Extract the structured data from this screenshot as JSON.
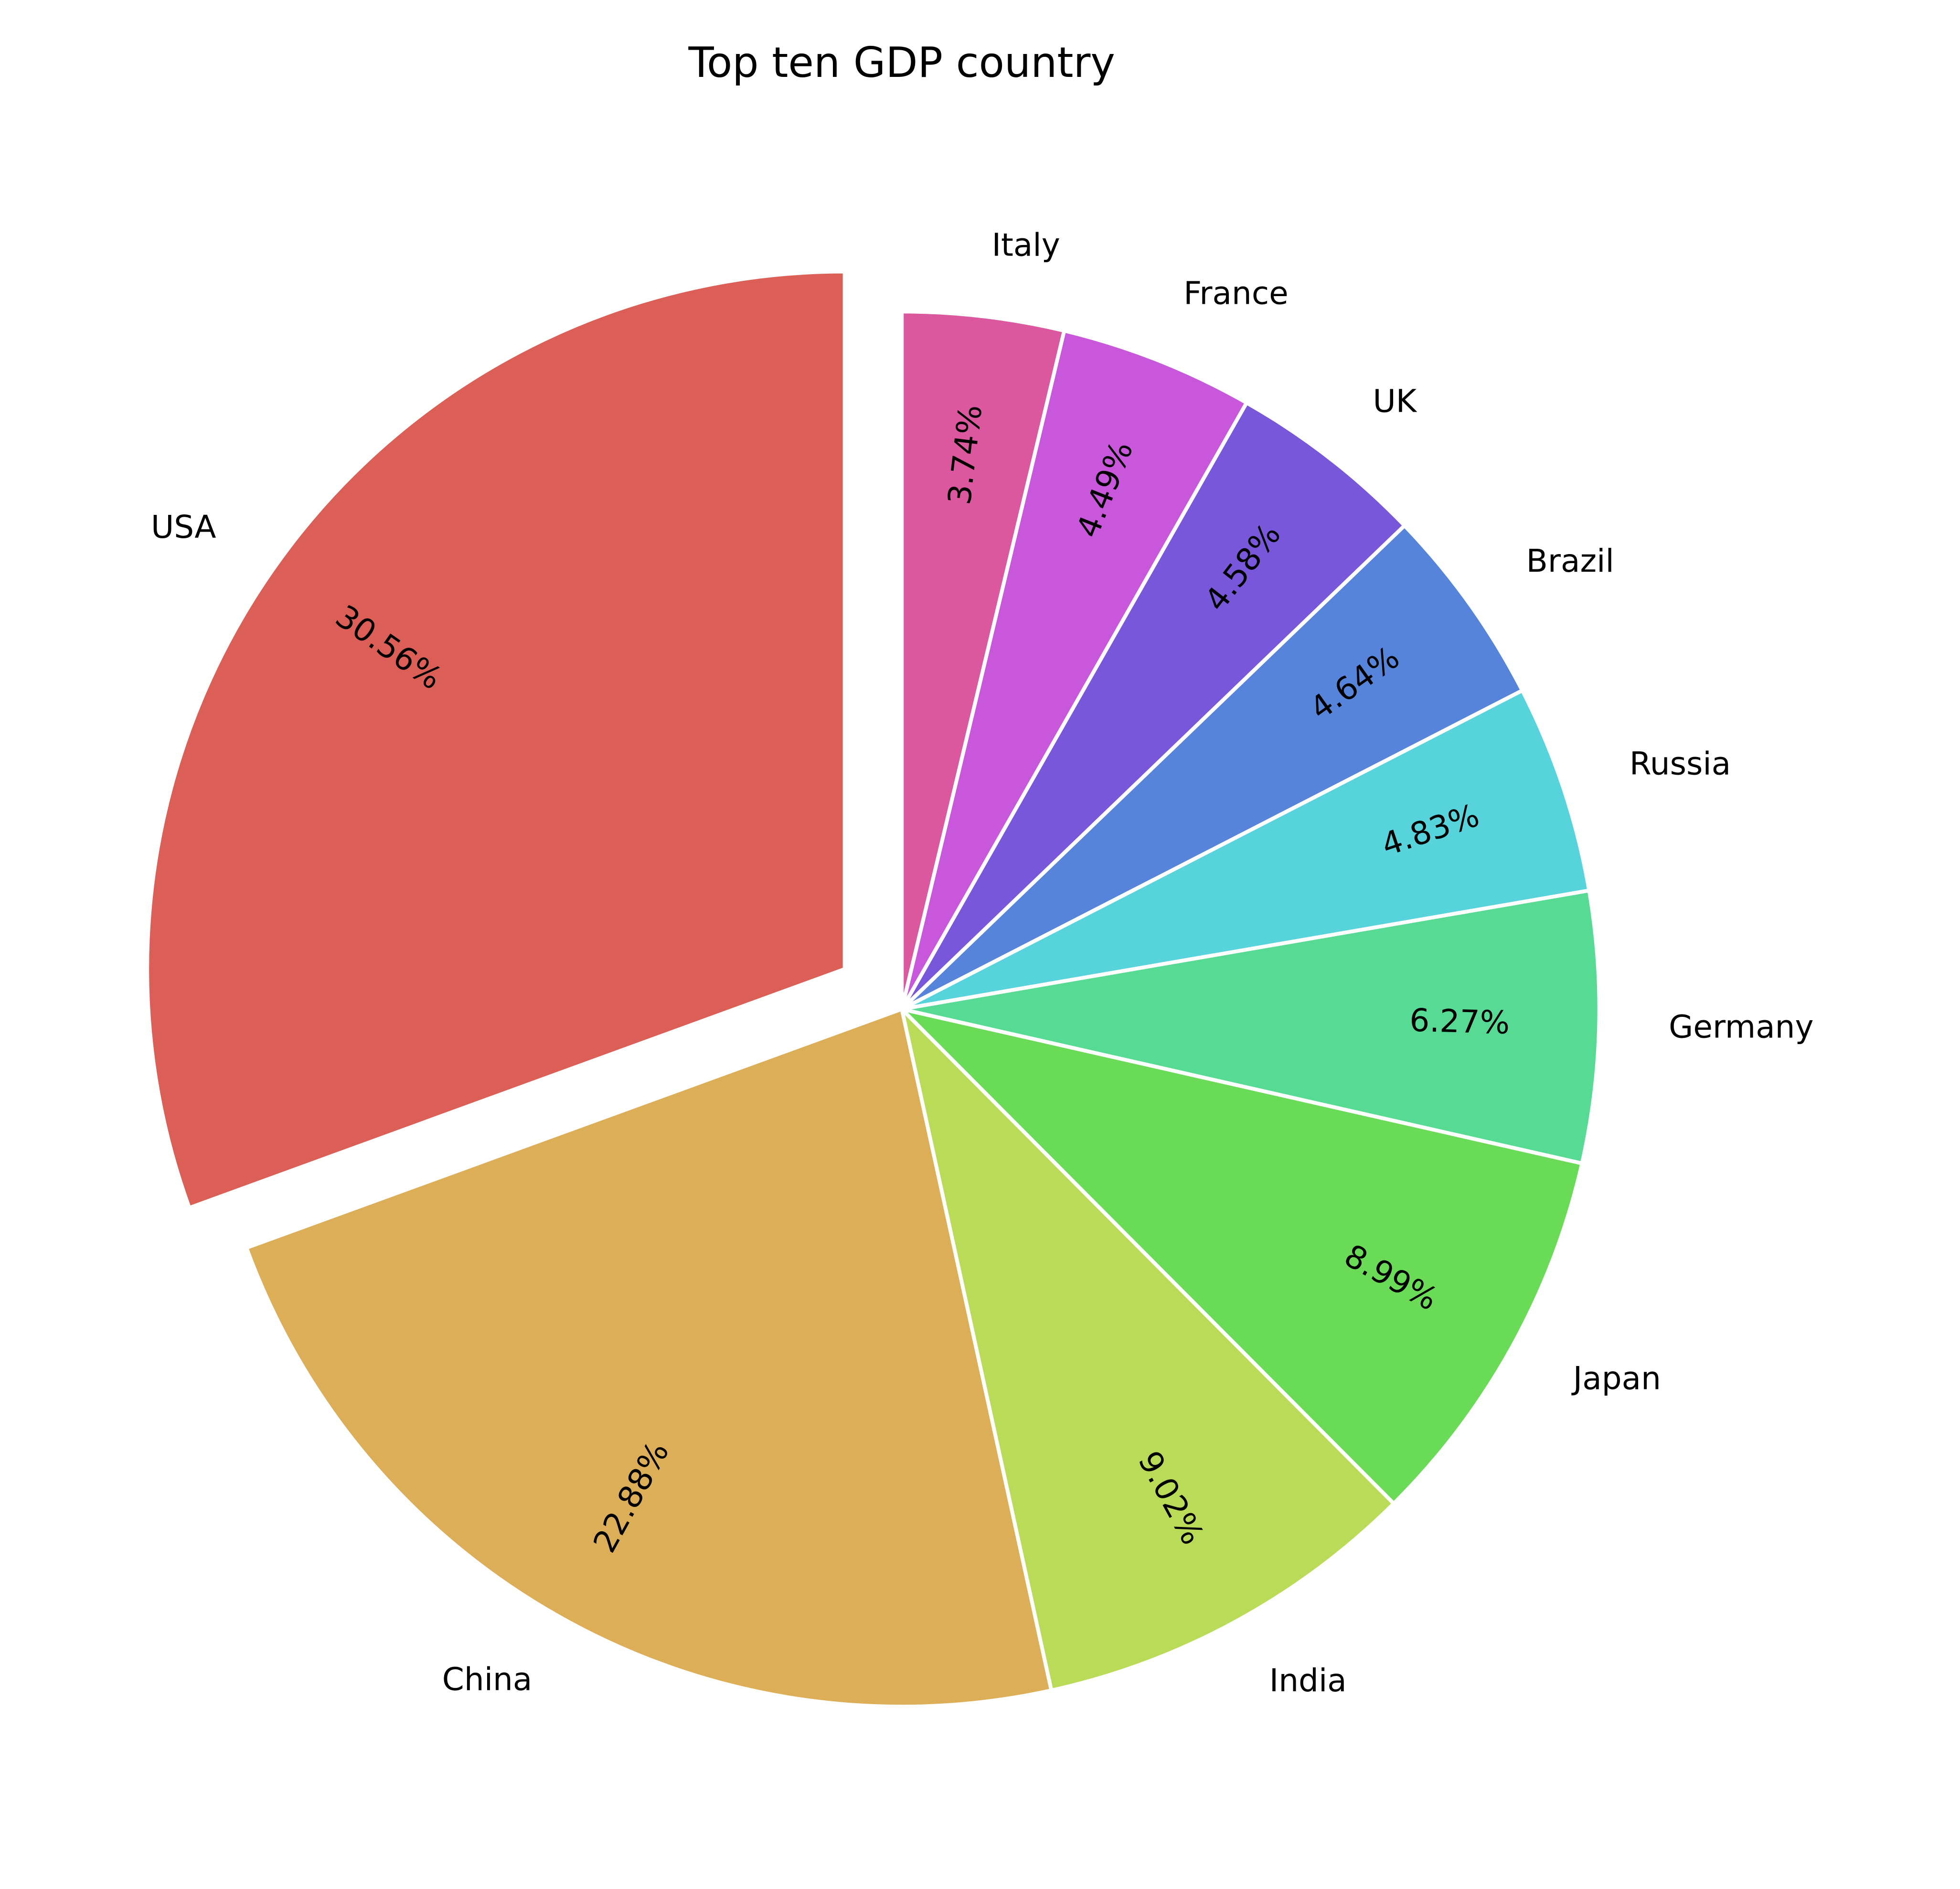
{
  "chart_data": {
    "type": "pie",
    "title": "Top ten GDP country",
    "categories": [
      "USA",
      "China",
      "India",
      "Japan",
      "Germany",
      "Russia",
      "Brazil",
      "UK",
      "France",
      "Italy"
    ],
    "values": [
      30.56,
      22.88,
      9.02,
      8.99,
      6.27,
      4.83,
      4.64,
      4.58,
      4.49,
      3.74
    ],
    "value_labels": [
      "30.56%",
      "22.88%",
      "9.02%",
      "8.99%",
      "6.27%",
      "4.83%",
      "4.64%",
      "4.58%",
      "4.49%",
      "3.74%"
    ],
    "colors": [
      "#db5f57",
      "#dbae57",
      "#b9db57",
      "#69db57",
      "#57db94",
      "#57d3db",
      "#5784db",
      "#7957db",
      "#c957db",
      "#db579e"
    ],
    "explode": [
      0.1,
      0,
      0,
      0,
      0,
      0,
      0,
      0,
      0,
      0
    ],
    "start_angle": 90,
    "counterclockwise": true
  }
}
